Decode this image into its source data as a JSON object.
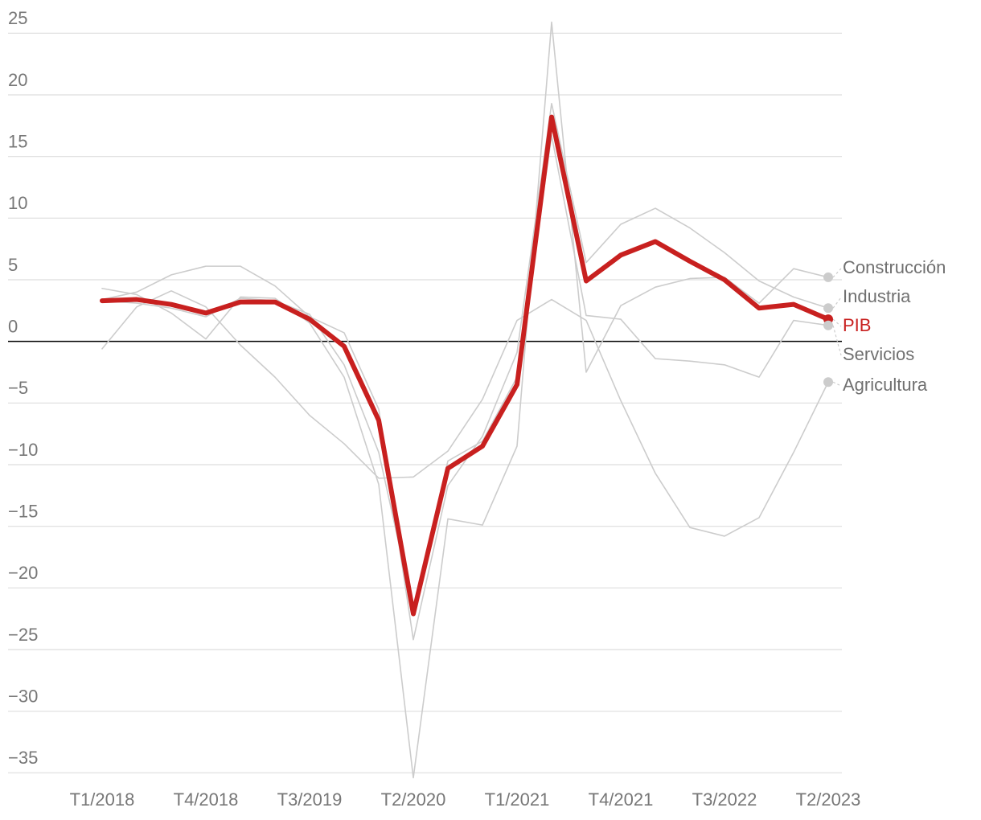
{
  "chart_data": {
    "type": "line",
    "categories": [
      "T1/2018",
      null,
      null,
      "T4/2018",
      null,
      null,
      "T3/2019",
      null,
      null,
      "T2/2020",
      null,
      null,
      "T1/2021",
      null,
      null,
      "T4/2021",
      null,
      null,
      "T3/2022",
      null,
      null,
      "T2/2023"
    ],
    "ylim": [
      -35.5,
      26
    ],
    "yticks": [
      {
        "value": -35,
        "label": "−35"
      },
      {
        "value": -30,
        "label": "−30"
      },
      {
        "value": -25,
        "label": "−25"
      },
      {
        "value": -20,
        "label": "−20"
      },
      {
        "value": -15,
        "label": "−15"
      },
      {
        "value": -10,
        "label": "−10"
      },
      {
        "value": -5,
        "label": "−5"
      },
      0,
      5,
      10,
      15,
      20,
      25
    ],
    "grid": true,
    "series": [
      {
        "name": "Construcción",
        "color": "#cccccc",
        "line_width": 1.6,
        "values": [
          4.3,
          3.8,
          2.3,
          0.2,
          3.6,
          3.5,
          1.5,
          -2.9,
          -11.6,
          -35.4,
          -14.4,
          -14.9,
          -8.5,
          25.9,
          -2.5,
          2.9,
          4.4,
          5.1,
          5.2,
          3.1,
          5.9,
          5.2
        ]
      },
      {
        "name": "Industria",
        "color": "#cccccc",
        "line_width": 1.6,
        "values": [
          3.4,
          4.0,
          5.4,
          6.1,
          6.1,
          4.5,
          2.0,
          0.7,
          -5.5,
          -24.2,
          -11.7,
          -7.7,
          -0.9,
          19.3,
          6.4,
          9.5,
          10.8,
          9.2,
          7.2,
          4.9,
          3.6,
          2.7
        ]
      },
      {
        "name": "Servicios",
        "color": "#cccccc",
        "line_width": 1.6,
        "values": [
          3.3,
          3.1,
          2.7,
          2.0,
          3.5,
          3.3,
          2.2,
          -1.9,
          -9.0,
          -21.7,
          -9.7,
          -8.1,
          -2.9,
          16.7,
          2.1,
          1.8,
          -1.4,
          -1.6,
          -1.9,
          -2.9,
          1.7,
          1.3
        ]
      },
      {
        "name": "Agricultura",
        "color": "#cccccc",
        "line_width": 1.6,
        "values": [
          -0.6,
          2.8,
          4.1,
          2.8,
          -0.3,
          -2.9,
          -6.0,
          -8.3,
          -11.1,
          -11.0,
          -8.9,
          -4.7,
          1.7,
          3.4,
          1.7,
          -4.8,
          -10.7,
          -15.1,
          -15.8,
          -14.3,
          -9.0,
          -3.3
        ]
      },
      {
        "name": "PIB",
        "color": "#c8201f",
        "line_width": 6,
        "values": [
          3.3,
          3.4,
          3.0,
          2.3,
          3.2,
          3.2,
          1.8,
          -0.4,
          -6.4,
          -22.1,
          -10.3,
          -8.5,
          -3.5,
          18.2,
          4.9,
          7.0,
          8.1,
          6.5,
          5.0,
          2.7,
          3.0,
          1.8
        ]
      }
    ]
  }
}
